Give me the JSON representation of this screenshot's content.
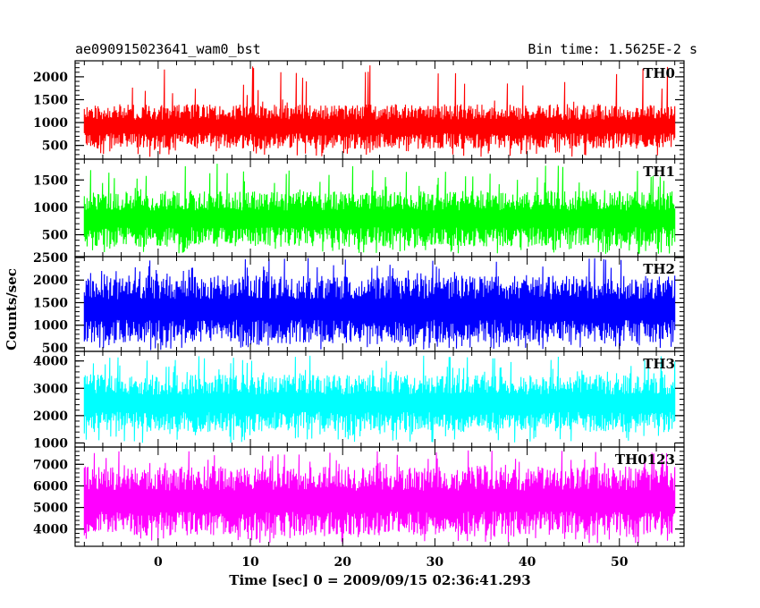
{
  "header": {
    "left_title": "ae090915023641_wam0_bst",
    "right_title": "Bin time: 1.5625E-2 s"
  },
  "chart_data": {
    "type": "line",
    "ylabel": "Counts/sec",
    "xlabel": "Time [sec] 0 = 2009/09/15 02:36:41.293",
    "xlim": [
      -9,
      57
    ],
    "x_range": [
      -8,
      56
    ],
    "x_ticks": [
      0,
      10,
      20,
      30,
      40,
      50
    ],
    "x_minor_step": 2,
    "panels": [
      {
        "label": "TH0",
        "color": "#ff0000",
        "ylim": [
          200,
          2350
        ],
        "y_ticks": [
          500,
          1000,
          1500,
          2000
        ],
        "minor_step": 100,
        "low": 430,
        "high": 1400,
        "spike_max": 2300,
        "spike_min": 250
      },
      {
        "label": "TH1",
        "color": "#00ff00",
        "ylim": [
          100,
          1880
        ],
        "y_ticks": [
          500,
          1000,
          1500
        ],
        "minor_step": 100,
        "low": 280,
        "high": 1300,
        "spike_max": 1830,
        "spike_min": 150
      },
      {
        "label": "TH2",
        "color": "#0000ff",
        "ylim": [
          420,
          2520
        ],
        "y_ticks": [
          500,
          1000,
          1500,
          2000,
          2500
        ],
        "minor_step": 100,
        "low": 600,
        "high": 2100,
        "spike_max": 2500,
        "spike_min": 450
      },
      {
        "label": "TH3",
        "color": "#00ffff",
        "ylim": [
          850,
          4350
        ],
        "y_ticks": [
          1000,
          2000,
          3000,
          4000
        ],
        "minor_step": 200,
        "low": 1400,
        "high": 3500,
        "spike_max": 4200,
        "spike_min": 1000
      },
      {
        "label": "TH0123",
        "color": "#ff00ff",
        "ylim": [
          3200,
          7800
        ],
        "y_ticks": [
          4000,
          5000,
          6000,
          7000
        ],
        "minor_step": 200,
        "low": 3700,
        "high": 6900,
        "spike_max": 7650,
        "spike_min": 3300
      }
    ]
  }
}
